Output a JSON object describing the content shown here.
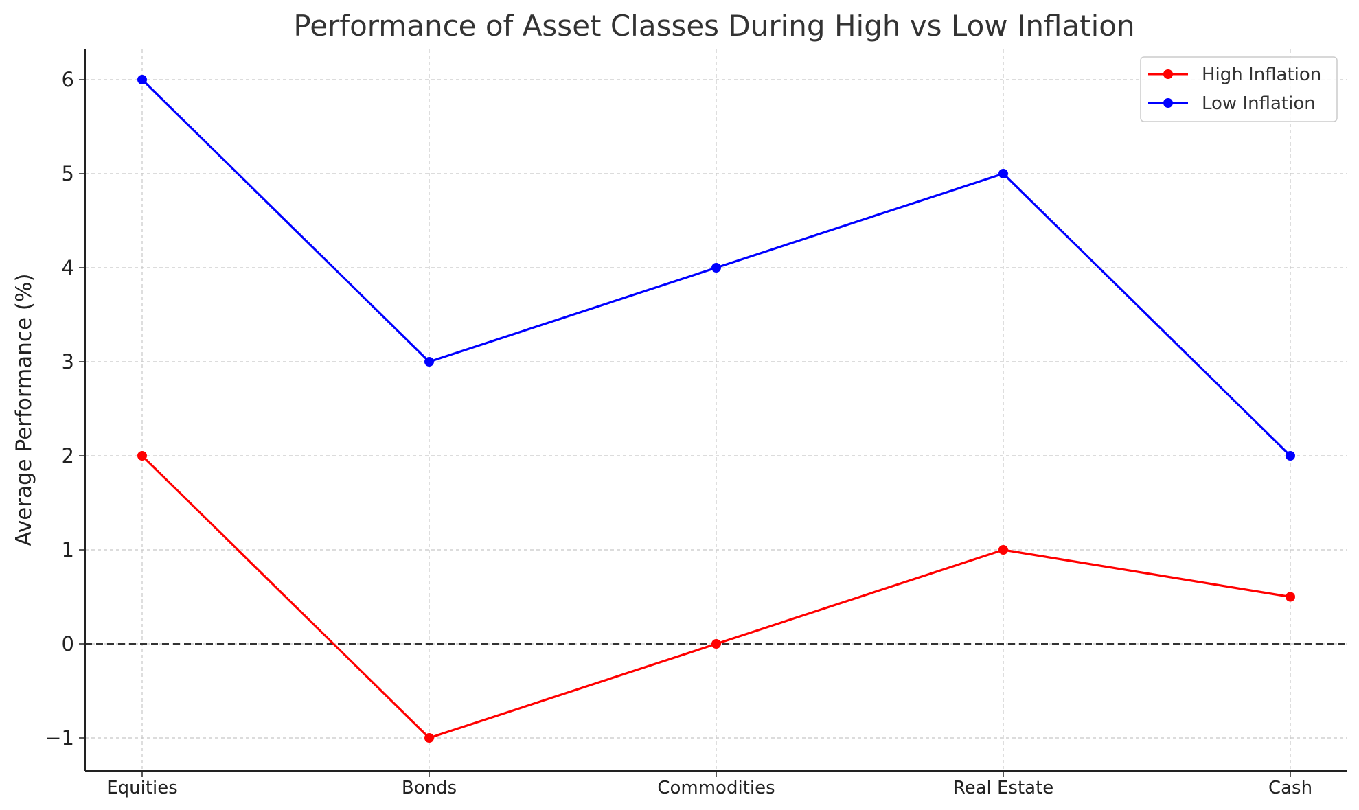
{
  "chart_data": {
    "type": "line",
    "title": "Performance of Asset Classes During High vs Low Inflation",
    "xlabel": "",
    "ylabel": "Average Performance (%)",
    "categories": [
      "Equities",
      "Bonds",
      "Commodities",
      "Real Estate",
      "Cash"
    ],
    "series": [
      {
        "name": "High Inflation",
        "color": "#ff0000",
        "values": [
          2,
          -1,
          0,
          1,
          0.5
        ]
      },
      {
        "name": "Low Inflation",
        "color": "#0000ff",
        "values": [
          6,
          3,
          4,
          5,
          2
        ]
      }
    ],
    "ylim": [
      -1.35,
      6.35
    ],
    "yticks": [
      -1,
      0,
      1,
      2,
      3,
      4,
      5,
      6
    ],
    "ytick_labels": [
      "−1",
      "0",
      "1",
      "2",
      "3",
      "4",
      "5",
      "6"
    ],
    "reference_line": {
      "y": 0,
      "style": "dashed",
      "color": "#333333"
    },
    "grid": true,
    "legend_position": "top-right"
  }
}
